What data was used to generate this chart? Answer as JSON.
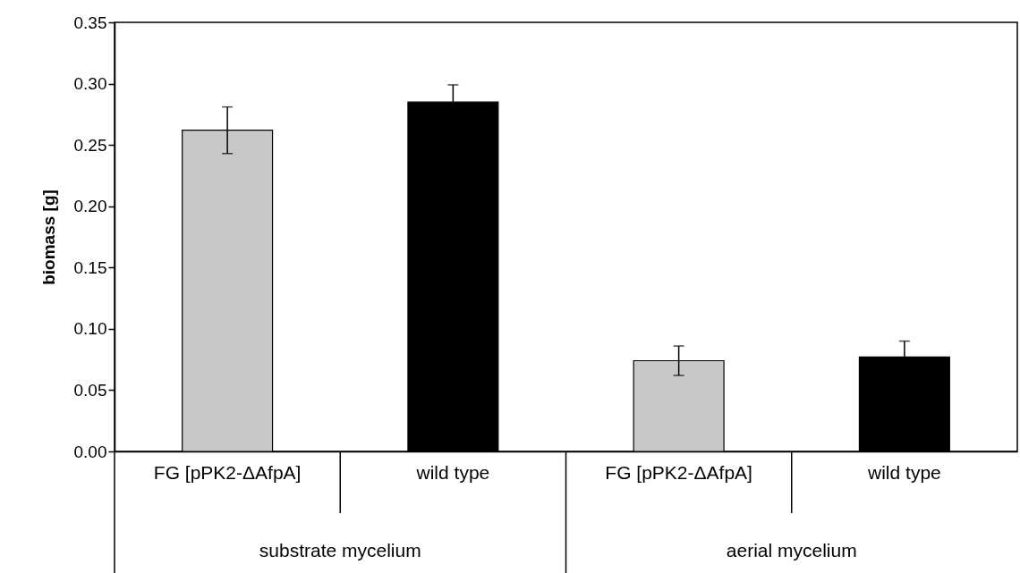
{
  "chart_data": {
    "type": "bar",
    "ylabel": "biomass [g]",
    "categories": [
      "FG [pPK2-ΔAfpA]",
      "wild type",
      "FG [pPK2-ΔAfpA]",
      "wild type"
    ],
    "values": [
      0.262,
      0.285,
      0.074,
      0.077
    ],
    "errors": [
      0.019,
      0.014,
      0.012,
      0.013
    ],
    "colors": [
      "#c8c8c8",
      "#000000",
      "#c8c8c8",
      "#000000"
    ],
    "ylim": [
      0,
      0.35
    ],
    "yticks": [
      {
        "value": 0,
        "label": "0.00"
      },
      0.05,
      {
        "value": 0.1,
        "label": "0.10"
      },
      0.15,
      {
        "value": 0.2,
        "label": "0.20"
      },
      0.25,
      {
        "value": 0.3,
        "label": "0.30"
      },
      0.35
    ],
    "annotations": [
      "substrate mycelium",
      "aerial mycelium"
    ]
  }
}
